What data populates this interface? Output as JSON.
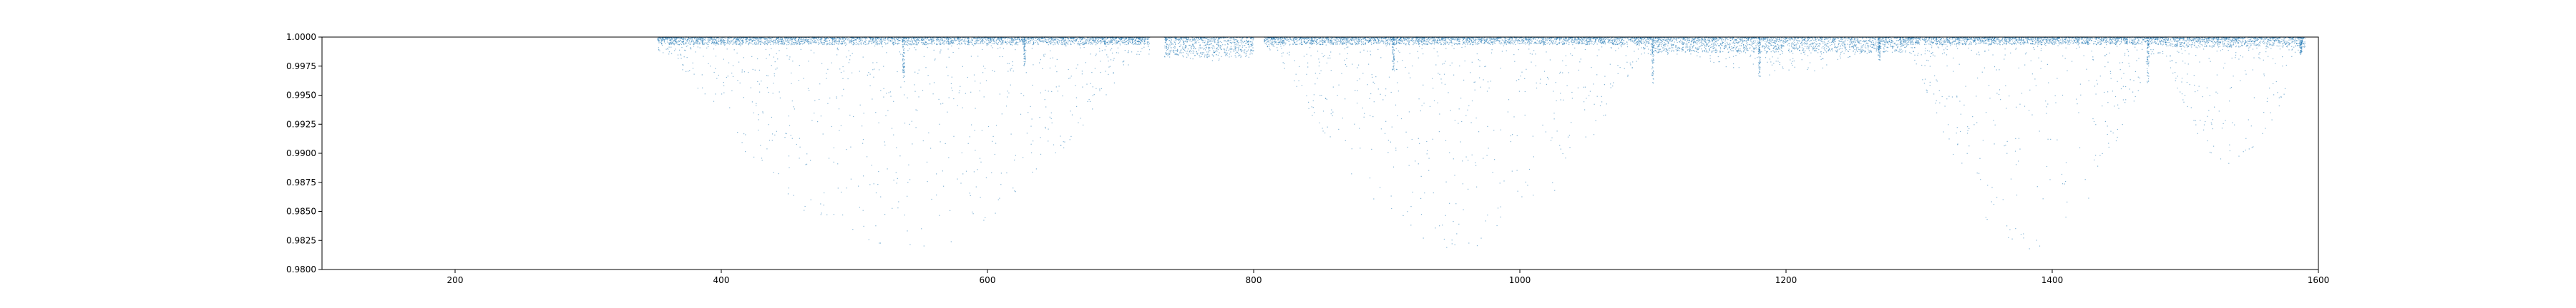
{
  "chart_data": {
    "type": "scatter",
    "title": "",
    "xlabel": "",
    "ylabel": "",
    "xlim": [
      100,
      1600
    ],
    "ylim": [
      0.98,
      1.0
    ],
    "x_ticks": [
      200,
      400,
      600,
      800,
      1000,
      1200,
      1400,
      1600
    ],
    "x_tick_labels": [
      "200",
      "400",
      "600",
      "800",
      "1000",
      "1200",
      "1400",
      "1600"
    ],
    "y_ticks": [
      0.98,
      0.9825,
      0.985,
      0.9875,
      0.99,
      0.9925,
      0.995,
      0.9975,
      1.0
    ],
    "y_tick_labels": [
      "0.9800",
      "0.9825",
      "0.9850",
      "0.9875",
      "0.9900",
      "0.9925",
      "0.9950",
      "0.9975",
      "1.0000"
    ],
    "grid": false,
    "legend": "none",
    "marker_color": "#1f77b4",
    "series": [
      {
        "segments": [
          {
            "x_start": 352,
            "x_end": 722,
            "baseline": 0.9997,
            "scatter_floor": 0.9805
          },
          {
            "x_start": 733,
            "x_end": 800,
            "baseline": 0.9992,
            "scatter_floor": 0.9975
          },
          {
            "x_start": 808,
            "x_end": 1100,
            "baseline": 0.9997,
            "scatter_floor": 0.9805
          },
          {
            "x_start": 1100,
            "x_end": 1290,
            "baseline": 0.9994,
            "scatter_floor": 0.9965
          },
          {
            "x_start": 1290,
            "x_end": 1480,
            "baseline": 0.9997,
            "scatter_floor": 0.9805
          },
          {
            "x_start": 1480,
            "x_end": 1590,
            "baseline": 0.9996,
            "scatter_floor": 0.988
          }
        ],
        "dips": [
          {
            "x": 537,
            "depth": 0.9965
          },
          {
            "x": 628,
            "depth": 0.9975
          },
          {
            "x": 905,
            "depth": 0.997
          },
          {
            "x": 1100,
            "depth": 0.996
          },
          {
            "x": 1180,
            "depth": 0.9965
          },
          {
            "x": 1270,
            "depth": 0.998
          },
          {
            "x": 1472,
            "depth": 0.996
          },
          {
            "x": 1587,
            "depth": 0.9985
          }
        ]
      }
    ]
  }
}
